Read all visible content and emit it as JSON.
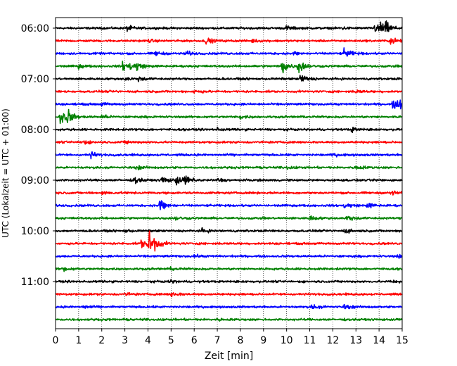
{
  "chart_data": {
    "type": "line",
    "title": "",
    "xlabel": "Zeit  [min]",
    "ylabel": "UTC (Lokalzeit = UTC + 01:00)",
    "xlim": [
      0,
      15
    ],
    "x_ticks": [
      "0",
      "1",
      "2",
      "3",
      "4",
      "5",
      "6",
      "7",
      "8",
      "9",
      "10",
      "11",
      "12",
      "13",
      "14",
      "15"
    ],
    "y_ticks": [
      "06:00",
      "07:00",
      "08:00",
      "09:00",
      "10:00",
      "11:00"
    ],
    "grid": "vertical dotted",
    "row_interval_min": 15,
    "colors": [
      "#000000",
      "#ff0000",
      "#0000ff",
      "#008000"
    ],
    "traces": [
      {
        "start": "06:00",
        "color": "#000000",
        "events": [
          [
            3.1,
            0.3
          ],
          [
            10.0,
            0.25
          ],
          [
            12.3,
            0.2
          ],
          [
            13.8,
            0.5
          ],
          [
            14.0,
            0.9
          ],
          [
            14.3,
            0.45
          ]
        ]
      },
      {
        "start": "06:15",
        "color": "#ff0000",
        "events": [
          [
            4.0,
            0.15
          ],
          [
            6.5,
            0.35
          ],
          [
            8.5,
            0.15
          ],
          [
            14.5,
            0.4
          ]
        ]
      },
      {
        "start": "06:30",
        "color": "#0000ff",
        "events": [
          [
            4.3,
            0.25
          ],
          [
            5.6,
            0.3
          ],
          [
            10.3,
            0.2
          ],
          [
            12.5,
            0.6
          ]
        ]
      },
      {
        "start": "06:45",
        "color": "#008000",
        "events": [
          [
            1.0,
            0.2
          ],
          [
            2.9,
            0.5
          ],
          [
            3.2,
            0.45
          ],
          [
            3.5,
            0.4
          ],
          [
            9.8,
            1.0
          ],
          [
            10.5,
            0.9
          ]
        ]
      },
      {
        "start": "07:00",
        "color": "#000000",
        "events": [
          [
            3.0,
            0.2
          ],
          [
            10.6,
            0.6
          ],
          [
            3.6,
            0.25
          ]
        ]
      },
      {
        "start": "07:15",
        "color": "#ff0000",
        "events": [
          [
            6.0,
            0.2
          ],
          [
            13.0,
            0.15
          ]
        ]
      },
      {
        "start": "07:30",
        "color": "#0000ff",
        "events": [
          [
            2.0,
            0.15
          ],
          [
            14.6,
            0.6
          ],
          [
            14.9,
            0.7
          ]
        ]
      },
      {
        "start": "07:45",
        "color": "#008000",
        "events": [
          [
            0.2,
            1.0
          ],
          [
            0.5,
            0.7
          ],
          [
            2.0,
            0.2
          ],
          [
            8.0,
            0.2
          ]
        ]
      },
      {
        "start": "08:00",
        "color": "#000000",
        "events": [
          [
            12.8,
            0.25
          ],
          [
            7.0,
            0.15
          ]
        ]
      },
      {
        "start": "08:15",
        "color": "#ff0000",
        "events": [
          [
            1.1,
            0.3
          ],
          [
            3.0,
            0.15
          ]
        ]
      },
      {
        "start": "08:30",
        "color": "#0000ff",
        "events": [
          [
            1.5,
            0.35
          ],
          [
            12.0,
            0.15
          ]
        ]
      },
      {
        "start": "08:45",
        "color": "#008000",
        "events": [
          [
            3.5,
            0.2
          ],
          [
            10.0,
            0.15
          ],
          [
            13.0,
            0.3
          ]
        ]
      },
      {
        "start": "09:00",
        "color": "#000000",
        "events": [
          [
            3.4,
            0.4
          ],
          [
            4.6,
            0.45
          ],
          [
            5.2,
            0.55
          ],
          [
            5.6,
            0.5
          ],
          [
            7.0,
            0.2
          ]
        ]
      },
      {
        "start": "09:15",
        "color": "#ff0000",
        "events": [
          [
            2.0,
            0.15
          ],
          [
            14.5,
            0.3
          ]
        ]
      },
      {
        "start": "09:30",
        "color": "#0000ff",
        "events": [
          [
            4.5,
            0.9
          ],
          [
            12.5,
            0.35
          ],
          [
            13.5,
            0.3
          ]
        ]
      },
      {
        "start": "09:45",
        "color": "#008000",
        "events": [
          [
            5.2,
            0.2
          ],
          [
            11.0,
            0.3
          ],
          [
            12.6,
            0.35
          ]
        ]
      },
      {
        "start": "10:00",
        "color": "#000000",
        "events": [
          [
            3.0,
            0.15
          ],
          [
            6.3,
            0.25
          ],
          [
            12.5,
            0.3
          ]
        ]
      },
      {
        "start": "10:15",
        "color": "#ff0000",
        "events": [
          [
            4.0,
            1.5
          ],
          [
            3.7,
            0.5
          ],
          [
            4.2,
            0.6
          ]
        ]
      },
      {
        "start": "10:30",
        "color": "#0000ff",
        "events": [
          [
            6.0,
            0.15
          ],
          [
            14.8,
            0.2
          ]
        ]
      },
      {
        "start": "10:45",
        "color": "#008000",
        "events": [
          [
            0.3,
            0.3
          ],
          [
            5.0,
            0.15
          ]
        ]
      },
      {
        "start": "11:00",
        "color": "#000000",
        "events": [
          [
            4.9,
            0.15
          ],
          [
            14.5,
            0.15
          ]
        ]
      },
      {
        "start": "11:15",
        "color": "#ff0000",
        "events": [
          [
            5.0,
            0.35
          ],
          [
            3.0,
            0.15
          ]
        ]
      },
      {
        "start": "11:30",
        "color": "#0000ff",
        "events": [
          [
            1.2,
            0.2
          ],
          [
            11.1,
            0.25
          ],
          [
            12.5,
            0.25
          ]
        ]
      },
      {
        "start": "11:45",
        "color": "#008000",
        "events": [
          [
            7.0,
            0.1
          ]
        ]
      }
    ]
  }
}
